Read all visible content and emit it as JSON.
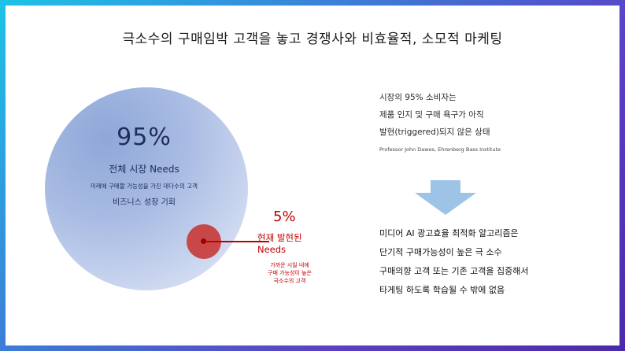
{
  "title": "극소수의 구매임박 고객을 놓고 경쟁사와 비효율적, 소모적 마케팅",
  "big_circle": {
    "percent": "95%",
    "label": "전체 시장 Needs",
    "desc": "미래에 구매할 가능성을 가진 대다수의 고객",
    "opportunity": "비즈니스 성장 기회"
  },
  "small_circle": {
    "percent": "5%",
    "label_line1": "현재 발현된",
    "label_line2": "Needs",
    "desc_line1": "가까운 시일 내에",
    "desc_line2": "구매 가능성이 높은",
    "desc_line3": "극소수의 고객"
  },
  "right_top": {
    "line1": "시장의 95% 소비자는",
    "line2": "제품 인지 및 구매 욕구가 아직",
    "line3": "발현(triggered)되지 않은 상태",
    "source": "Professor John Dawes, Ehrenberg Bass Institute"
  },
  "right_bottom": {
    "line1": "미디어 AI 광고효율 최적화 알고리즘은",
    "line2": "단기적 구매가능성이 높은 극 소수",
    "line3": "구매의향 고객 또는 기존 고객을 집중해서",
    "line4": "타게팅 하도록 학습될 수 밖에 없음"
  },
  "colors": {
    "accent_red": "#c00000",
    "circle_blue": "#a9bce3",
    "arrow_blue": "#9dc3e6",
    "frame_gradient_start": "#1ec3e6",
    "frame_gradient_end": "#4a2aa8"
  },
  "icons": {
    "arrow": "down-arrow-icon"
  }
}
